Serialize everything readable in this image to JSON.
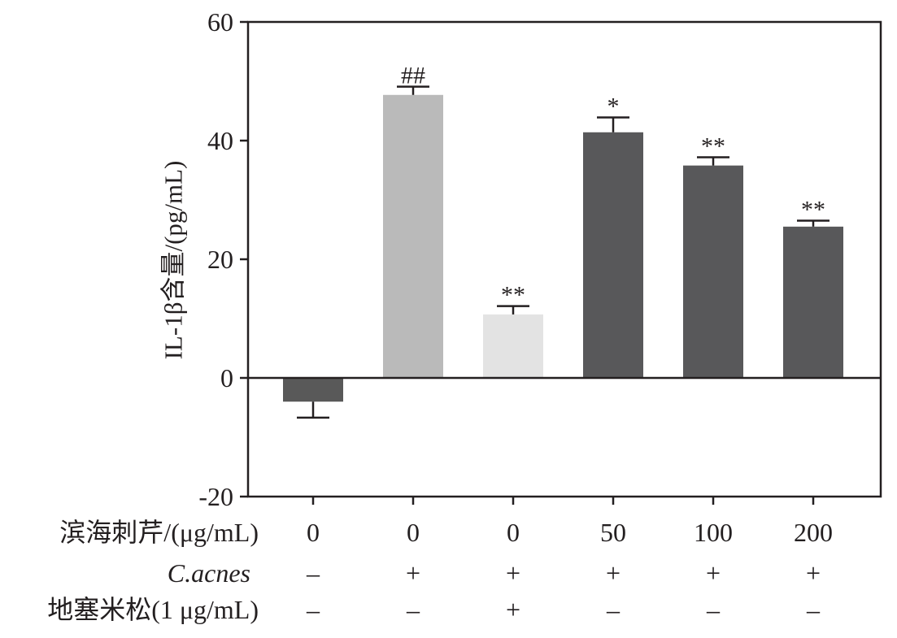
{
  "chart_data": {
    "type": "bar",
    "ylabel": "IL-1β含量/(pg/mL)",
    "ylim": [
      -20,
      60
    ],
    "yticks": [
      60,
      40,
      20,
      0,
      -20
    ],
    "values": [
      -4.0,
      47.7,
      10.7,
      41.4,
      35.8,
      25.5
    ],
    "errors": [
      2.7,
      1.4,
      1.4,
      2.5,
      1.4,
      1.0
    ],
    "significance": [
      null,
      "##",
      "**",
      "*",
      "**",
      "**"
    ],
    "bar_colors": [
      "#595959",
      "#bababa",
      "#e3e3e3",
      "#58585a",
      "#58585a",
      "#58585a"
    ],
    "grid": false,
    "conditions": [
      {
        "label": "滨海刺芹/(μg/mL)",
        "cells": [
          "0",
          "0",
          "0",
          "50",
          "100",
          "200"
        ]
      },
      {
        "label": "C.acnes",
        "cells": [
          "–",
          "+",
          "+",
          "+",
          "+",
          "+"
        ]
      },
      {
        "label": "地塞米松(1 μg/mL)",
        "cells": [
          "–",
          "–",
          "+",
          "–",
          "–",
          "–"
        ]
      }
    ]
  }
}
